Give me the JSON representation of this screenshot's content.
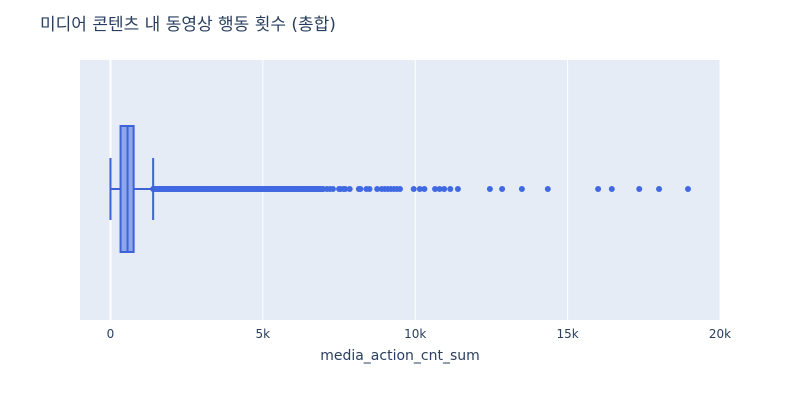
{
  "chart_data": {
    "type": "box",
    "orientation": "horizontal",
    "title": "미디어 콘텐츠 내 동영상 행동 횟수 (총합)",
    "xlabel": "media_action_cnt_sum",
    "ylabel": "",
    "xlim": [
      -1000,
      20000
    ],
    "xticks": [
      0,
      5000,
      10000,
      15000,
      20000
    ],
    "xtick_labels": [
      "0",
      "5k",
      "10k",
      "15k",
      "20k"
    ],
    "grid": true,
    "legend": "none",
    "colors": {
      "box_line": "#3f63d6",
      "box_fill": "#8ea6ec",
      "outlier": "#4169e1",
      "plot_bg": "#e5ecf6",
      "grid": "#ffffff",
      "text": "#2a3f5f"
    },
    "box": {
      "min": 0,
      "q1": 330,
      "median": 560,
      "q3": 760,
      "upper_fence": 1400
    },
    "outliers": [
      7100,
      7200,
      7300,
      7500,
      7550,
      7650,
      7700,
      7850,
      8150,
      8200,
      8400,
      8500,
      8750,
      8900,
      9000,
      9100,
      9200,
      9300,
      9400,
      9500,
      9950,
      10150,
      10300,
      10650,
      10800,
      10950,
      11150,
      11400,
      12450,
      12850,
      13500,
      14350,
      16000,
      16450,
      17350,
      18000,
      18950
    ],
    "dense_outlier_range": [
      1400,
      7000
    ]
  }
}
